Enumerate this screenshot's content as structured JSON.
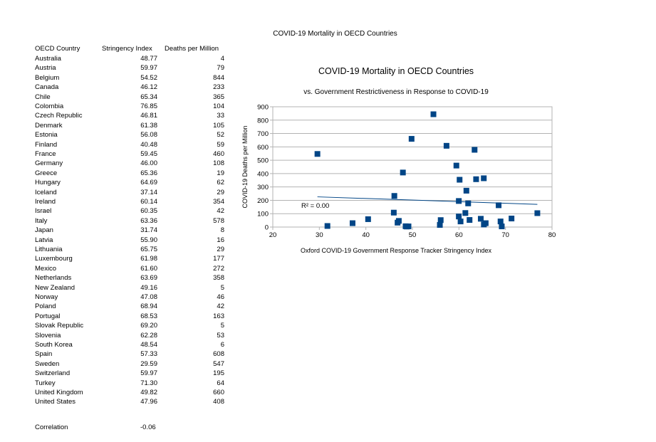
{
  "page_title": "COVID-19 Mortality in OECD Countries",
  "table": {
    "headers": [
      "OECD Country",
      "Stringency Index",
      "Deaths per Million"
    ],
    "rows": [
      [
        "Australia",
        "48.77",
        "4"
      ],
      [
        "Austria",
        "59.97",
        "79"
      ],
      [
        "Belgium",
        "54.52",
        "844"
      ],
      [
        "Canada",
        "46.12",
        "233"
      ],
      [
        "Chile",
        "65.34",
        "365"
      ],
      [
        "Colombia",
        "76.85",
        "104"
      ],
      [
        "Czech Republic",
        "46.81",
        "33"
      ],
      [
        "Denmark",
        "61.38",
        "105"
      ],
      [
        "Estonia",
        "56.08",
        "52"
      ],
      [
        "Finland",
        "40.48",
        "59"
      ],
      [
        "France",
        "59.45",
        "460"
      ],
      [
        "Germany",
        "46.00",
        "108"
      ],
      [
        "Greece",
        "65.36",
        "19"
      ],
      [
        "Hungary",
        "64.69",
        "62"
      ],
      [
        "Iceland",
        "37.14",
        "29"
      ],
      [
        "Ireland",
        "60.14",
        "354"
      ],
      [
        "Israel",
        "60.35",
        "42"
      ],
      [
        "Italy",
        "63.36",
        "578"
      ],
      [
        "Japan",
        "31.74",
        "8"
      ],
      [
        "Latvia",
        "55.90",
        "16"
      ],
      [
        "Lithuania",
        "65.75",
        "29"
      ],
      [
        "Luxembourg",
        "61.98",
        "177"
      ],
      [
        "Mexico",
        "61.60",
        "272"
      ],
      [
        "Netherlands",
        "63.69",
        "358"
      ],
      [
        "New Zealand",
        "49.16",
        "5"
      ],
      [
        "Norway",
        "47.08",
        "46"
      ],
      [
        "Poland",
        "68.94",
        "42"
      ],
      [
        "Portugal",
        "68.53",
        "163"
      ],
      [
        "Slovak Republic",
        "69.20",
        "5"
      ],
      [
        "Slovenia",
        "62.28",
        "53"
      ],
      [
        "South Korea",
        "48.54",
        "6"
      ],
      [
        "Spain",
        "57.33",
        "608"
      ],
      [
        "Sweden",
        "29.59",
        "547"
      ],
      [
        "Switzerland",
        "59.97",
        "195"
      ],
      [
        "Turkey",
        "71.30",
        "64"
      ],
      [
        "United Kingdom",
        "49.82",
        "660"
      ],
      [
        "United States",
        "47.96",
        "408"
      ]
    ]
  },
  "correlation": {
    "label": "Correlation",
    "value": "-0.06"
  },
  "chart_data": {
    "type": "scatter",
    "title": "COVID-19 Mortality in OECD Countries",
    "subtitle": "vs. Government Restrictiveness in Response to COVID-19",
    "xlabel": "Oxford COVID-19 Government Response Tracker Stringency Index",
    "ylabel": "COVID-19 Deaths per Million",
    "xlim": [
      20,
      80
    ],
    "ylim": [
      0,
      900
    ],
    "xticks": [
      20,
      30,
      40,
      50,
      60,
      70,
      80
    ],
    "yticks": [
      0,
      100,
      200,
      300,
      400,
      500,
      600,
      700,
      800,
      900
    ],
    "grid": "horizontal",
    "legend": "none",
    "marker_color": "#004586",
    "trendline_color": "#004586",
    "trendline": {
      "x": [
        29.59,
        76.85
      ],
      "y": [
        226,
        170
      ]
    },
    "r_squared_label": "R² = 0.00",
    "points": [
      [
        48.77,
        4
      ],
      [
        59.97,
        79
      ],
      [
        54.52,
        844
      ],
      [
        46.12,
        233
      ],
      [
        65.34,
        365
      ],
      [
        76.85,
        104
      ],
      [
        46.81,
        33
      ],
      [
        61.38,
        105
      ],
      [
        56.08,
        52
      ],
      [
        40.48,
        59
      ],
      [
        59.45,
        460
      ],
      [
        46.0,
        108
      ],
      [
        65.36,
        19
      ],
      [
        64.69,
        62
      ],
      [
        37.14,
        29
      ],
      [
        60.14,
        354
      ],
      [
        60.35,
        42
      ],
      [
        63.36,
        578
      ],
      [
        31.74,
        8
      ],
      [
        55.9,
        16
      ],
      [
        65.75,
        29
      ],
      [
        61.98,
        177
      ],
      [
        61.6,
        272
      ],
      [
        63.69,
        358
      ],
      [
        49.16,
        5
      ],
      [
        47.08,
        46
      ],
      [
        68.94,
        42
      ],
      [
        68.53,
        163
      ],
      [
        69.2,
        5
      ],
      [
        62.28,
        53
      ],
      [
        48.54,
        6
      ],
      [
        57.33,
        608
      ],
      [
        29.59,
        547
      ],
      [
        59.97,
        195
      ],
      [
        71.3,
        64
      ],
      [
        49.82,
        660
      ],
      [
        47.96,
        408
      ]
    ]
  }
}
